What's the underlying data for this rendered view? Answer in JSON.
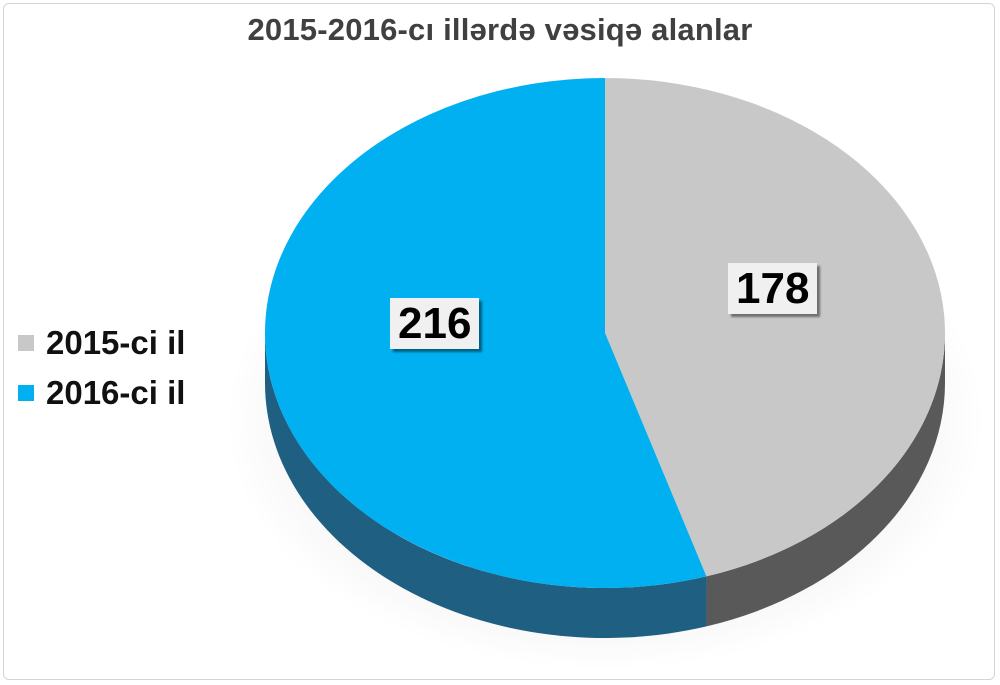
{
  "chart_data": {
    "type": "pie",
    "title": "2015-2016-cı illərdə vəsiqə alanlar",
    "categories": [
      "2015-ci il",
      "2016-ci il"
    ],
    "values": [
      178,
      216
    ],
    "colors": [
      "#c8c8c8",
      "#00b0f0"
    ],
    "side_colors": [
      "#595959",
      "#1f5f82"
    ],
    "legend_position": "left",
    "style": "3d"
  }
}
